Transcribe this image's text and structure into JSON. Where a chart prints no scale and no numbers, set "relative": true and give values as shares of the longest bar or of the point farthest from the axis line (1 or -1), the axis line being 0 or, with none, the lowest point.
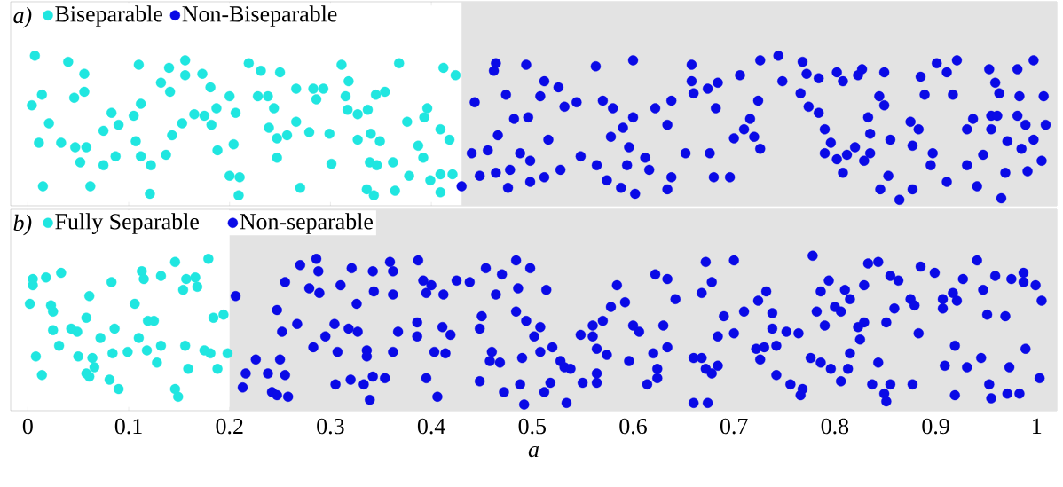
{
  "chart_data": [
    {
      "type": "scatter",
      "relative": true,
      "xlim": [
        -0.017,
        1.02
      ],
      "xticks": [
        0,
        0.1,
        0.2,
        0.3,
        0.4,
        0.5,
        0.6,
        0.7,
        0.8,
        0.9,
        1
      ],
      "tick_labels": false,
      "legend": "top left",
      "grid": false,
      "annotations": [
        "a)"
      ],
      "bands": [
        {
          "axis": "x",
          "from": 0.43,
          "to": 1.02,
          "color": "#e3e3e3"
        }
      ],
      "series": [
        {
          "name": "Biseparable",
          "color": "#20e6e0",
          "x": [
            0.007,
            0.04,
            0.056,
            0.014,
            0.004,
            0.046,
            0.056,
            0.021,
            0.011,
            0.033,
            0.047,
            0.058,
            0.015,
            0.062,
            0.052,
            0.075,
            0.087,
            0.083,
            0.09,
            0.075,
            0.105,
            0.107,
            0.112,
            0.11,
            0.112,
            0.122,
            0.121,
            0.137,
            0.143,
            0.14,
            0.132,
            0.141,
            0.156,
            0.156,
            0.173,
            0.181,
            0.153,
            0.165,
            0.175,
            0.182,
            0.187,
            0.188,
            0.204,
            0.2,
            0.206,
            0.2,
            0.21,
            0.209,
            0.219,
            0.231,
            0.25,
            0.228,
            0.238,
            0.244,
            0.239,
            0.247,
            0.257,
            0.247,
            0.266,
            0.266,
            0.279,
            0.283,
            0.293,
            0.286,
            0.299,
            0.27,
            0.301,
            0.311,
            0.318,
            0.315,
            0.317,
            0.327,
            0.337,
            0.345,
            0.354,
            0.327,
            0.34,
            0.349,
            0.339,
            0.346,
            0.362,
            0.336,
            0.343,
            0.364,
            0.368,
            0.376,
            0.378,
            0.387,
            0.392,
            0.396,
            0.393,
            0.399,
            0.409,
            0.412,
            0.409,
            0.418,
            0.409,
            0.424,
            0.421
          ],
          "values": [
            1.0,
            0.96,
            0.88,
            0.74,
            0.67,
            0.72,
            0.76,
            0.55,
            0.42,
            0.42,
            0.39,
            0.39,
            0.13,
            0.13,
            0.29,
            0.27,
            0.33,
            0.62,
            0.54,
            0.5,
            0.6,
            0.43,
            0.68,
            0.94,
            0.33,
            0.27,
            0.08,
            0.34,
            0.47,
            0.92,
            0.82,
            0.76,
            0.97,
            0.87,
            0.88,
            0.79,
            0.55,
            0.61,
            0.6,
            0.54,
            0.65,
            0.37,
            0.41,
            0.73,
            0.62,
            0.2,
            0.19,
            0.07,
            0.95,
            0.9,
            0.89,
            0.73,
            0.73,
            0.65,
            0.52,
            0.45,
            0.47,
            0.32,
            0.56,
            0.78,
            0.49,
            0.78,
            0.78,
            0.71,
            0.48,
            0.12,
            0.28,
            0.94,
            0.83,
            0.73,
            0.64,
            0.61,
            0.64,
            0.74,
            0.76,
            0.44,
            0.48,
            0.43,
            0.29,
            0.27,
            0.29,
            0.11,
            0.07,
            0.1,
            0.95,
            0.56,
            0.2,
            0.4,
            0.32,
            0.65,
            0.59,
            0.17,
            0.21,
            0.92,
            0.51,
            0.44,
            0.09,
            0.87,
            0.21
          ]
        },
        {
          "name": "Non-Biseparable",
          "color": "#0a0ae6",
          "x": [
            0.464,
            0.462,
            0.494,
            0.512,
            0.526,
            0.508,
            0.474,
            0.443,
            0.482,
            0.496,
            0.466,
            0.44,
            0.456,
            0.488,
            0.498,
            0.478,
            0.464,
            0.448,
            0.43,
            0.476,
            0.498,
            0.512,
            0.516,
            0.528,
            0.532,
            0.544,
            0.563,
            0.57,
            0.58,
            0.6,
            0.6,
            0.59,
            0.578,
            0.596,
            0.594,
            0.612,
            0.616,
            0.564,
            0.548,
            0.574,
            0.588,
            0.602,
            0.622,
            0.638,
            0.634,
            0.652,
            0.638,
            0.634,
            0.658,
            0.658,
            0.66,
            0.674,
            0.684,
            0.682,
            0.676,
            0.68,
            0.696,
            0.706,
            0.7,
            0.71,
            0.716,
            0.72,
            0.726,
            0.724,
            0.726,
            0.744,
            0.748,
            0.766,
            0.768,
            0.772,
            0.784,
            0.774,
            0.784,
            0.79,
            0.796,
            0.79,
            0.802,
            0.812,
            0.82,
            0.808,
            0.829,
            0.835,
            0.835,
            0.833,
            0.849,
            0.855,
            0.853,
            0.845,
            0.864,
            0.877,
            0.877,
            0.875,
            0.883,
            0.844,
            0.849,
            0.802,
            0.808,
            0.823,
            0.827,
            0.885,
            0.889,
            0.901,
            0.911,
            0.921,
            0.917,
            0.897,
            0.895,
            0.911,
            0.931,
            0.931,
            0.937,
            0.947,
            0.941,
            0.953,
            0.959,
            0.963,
            0.955,
            0.961,
            0.955,
            0.971,
            0.983,
            0.981,
            0.989,
            0.985,
            0.997,
            0.981,
            0.997,
            1.007,
            1.009,
            1.005,
            0.991,
            0.969,
            0.965
          ],
          "values": [
            0.95,
            0.9,
            0.94,
            0.83,
            0.79,
            0.73,
            0.74,
            0.69,
            0.58,
            0.59,
            0.47,
            0.35,
            0.37,
            0.35,
            0.3,
            0.24,
            0.22,
            0.2,
            0.13,
            0.12,
            0.16,
            0.19,
            0.44,
            0.24,
            0.66,
            0.69,
            0.93,
            0.7,
            0.65,
            0.97,
            0.59,
            0.52,
            0.46,
            0.39,
            0.27,
            0.32,
            0.24,
            0.27,
            0.33,
            0.17,
            0.12,
            0.08,
            0.65,
            0.7,
            0.54,
            0.35,
            0.19,
            0.11,
            0.94,
            0.83,
            0.75,
            0.78,
            0.82,
            0.65,
            0.35,
            0.19,
            0.19,
            0.87,
            0.45,
            0.51,
            0.58,
            0.46,
            0.38,
            0.7,
            0.97,
            1.0,
            0.83,
            0.75,
            0.96,
            0.88,
            0.85,
            0.66,
            0.62,
            0.51,
            0.42,
            0.35,
            0.31,
            0.34,
            0.39,
            0.22,
            0.3,
            0.35,
            0.48,
            0.59,
            0.89,
            0.44,
            0.2,
            0.11,
            0.04,
            0.11,
            0.4,
            0.56,
            0.51,
            0.73,
            0.67,
            0.89,
            0.83,
            0.87,
            0.91,
            0.86,
            0.74,
            0.95,
            0.89,
            0.97,
            0.74,
            0.35,
            0.27,
            0.16,
            0.27,
            0.51,
            0.58,
            0.34,
            0.13,
            0.91,
            0.82,
            0.75,
            0.6,
            0.6,
            0.51,
            0.43,
            0.73,
            0.6,
            0.54,
            0.38,
            0.44,
            0.91,
            0.97,
            0.73,
            0.54,
            0.3,
            0.23,
            0.22,
            0.05
          ]
        }
      ]
    },
    {
      "type": "scatter",
      "relative": true,
      "xlim": [
        -0.017,
        1.02
      ],
      "xticks": [
        0,
        0.1,
        0.2,
        0.3,
        0.4,
        0.5,
        0.6,
        0.7,
        0.8,
        0.9,
        1
      ],
      "tick_labels": "x",
      "xlabel": "a",
      "legend": "top left",
      "grid": false,
      "annotations": [
        "b)"
      ],
      "bands": [
        {
          "axis": "x",
          "from": 0.2,
          "to": 1.02,
          "color": "#e3e3e3"
        }
      ],
      "series": [
        {
          "name": "Fully Separable",
          "color": "#20e6e0",
          "x": [
            0.005,
            0.005,
            0.018,
            0.033,
            0.002,
            0.023,
            0.025,
            0.061,
            0.083,
            0.113,
            0.115,
            0.132,
            0.146,
            0.157,
            0.166,
            0.179,
            0.154,
            0.168,
            0.106,
            0.058,
            0.025,
            0.043,
            0.049,
            0.086,
            0.072,
            0.11,
            0.031,
            0.008,
            0.05,
            0.064,
            0.061,
            0.084,
            0.099,
            0.118,
            0.119,
            0.125,
            0.132,
            0.156,
            0.175,
            0.181,
            0.198,
            0.184,
            0.194,
            0.128,
            0.159,
            0.188,
            0.014,
            0.081,
            0.09,
            0.146,
            0.149,
            0.058,
            0.066
          ],
          "values": [
            0.81,
            0.85,
            0.86,
            0.89,
            0.69,
            0.68,
            0.64,
            0.74,
            0.83,
            0.9,
            0.85,
            0.87,
            0.96,
            0.85,
            0.86,
            0.98,
            0.78,
            0.8,
            0.69,
            0.6,
            0.52,
            0.53,
            0.51,
            0.53,
            0.47,
            0.47,
            0.42,
            0.35,
            0.35,
            0.34,
            0.22,
            0.37,
            0.38,
            0.39,
            0.58,
            0.58,
            0.42,
            0.42,
            0.39,
            0.37,
            0.37,
            0.6,
            0.62,
            0.31,
            0.27,
            0.27,
            0.23,
            0.2,
            0.14,
            0.14,
            0.09,
            0.24,
            0.28
          ]
        },
        {
          "name": "Non-separable",
          "color": "#0a0ae6",
          "x": [
            0.206,
            0.255,
            0.27,
            0.286,
            0.288,
            0.279,
            0.289,
            0.31,
            0.321,
            0.342,
            0.359,
            0.362,
            0.343,
            0.362,
            0.387,
            0.392,
            0.4,
            0.395,
            0.412,
            0.425,
            0.326,
            0.247,
            0.252,
            0.267,
            0.295,
            0.304,
            0.318,
            0.327,
            0.283,
            0.307,
            0.336,
            0.336,
            0.362,
            0.367,
            0.386,
            0.386,
            0.411,
            0.419,
            0.403,
            0.226,
            0.25,
            0.216,
            0.238,
            0.255,
            0.213,
            0.242,
            0.247,
            0.258,
            0.305,
            0.32,
            0.333,
            0.342,
            0.354,
            0.339,
            0.395,
            0.406,
            0.414,
            0.438,
            0.454,
            0.47,
            0.484,
            0.498,
            0.464,
            0.486,
            0.514,
            0.45,
            0.448,
            0.484,
            0.494,
            0.508,
            0.502,
            0.508,
            0.52,
            0.46,
            0.458,
            0.468,
            0.49,
            0.528,
            0.532,
            0.538,
            0.448,
            0.472,
            0.488,
            0.492,
            0.512,
            0.518,
            0.534,
            0.55,
            0.548,
            0.56,
            0.56,
            0.57,
            0.564,
            0.574,
            0.564,
            0.564,
            0.584,
            0.578,
            0.592,
            0.6,
            0.606,
            0.596,
            0.622,
            0.634,
            0.642,
            0.63,
            0.62,
            0.634,
            0.614,
            0.624,
            0.624,
            0.66,
            0.668,
            0.672,
            0.678,
            0.684,
            0.66,
            0.674,
            0.672,
            0.668,
            0.678,
            0.7,
            0.69,
            0.71,
            0.684,
            0.7,
            0.724,
            0.732,
            0.738,
            0.738,
            0.752,
            0.764,
            0.722,
            0.73,
            0.726,
            0.742,
            0.742,
            0.756,
            0.768,
            0.766,
            0.778,
            0.794,
            0.786,
            0.782,
            0.79,
            0.776,
            0.786,
            0.796,
            0.806,
            0.81,
            0.815,
            0.8,
            0.806,
            0.829,
            0.823,
            0.829,
            0.825,
            0.815,
            0.813,
            0.833,
            0.843,
            0.855,
            0.863,
            0.859,
            0.875,
            0.879,
            0.851,
            0.843,
            0.837,
            0.855,
            0.849,
            0.851,
            0.877,
            0.883,
            0.885,
            0.899,
            0.907,
            0.917,
            0.927,
            0.921,
            0.907,
            0.919,
            0.909,
            0.931,
            0.919,
            0.945,
            0.941,
            0.947,
            0.951,
            0.959,
            0.969,
            0.975,
            0.987,
            0.987,
            0.999,
            1.005,
            0.989,
            0.973,
            0.953,
            0.955,
            0.971,
            0.983,
            1.003
          ],
          "values": [
            0.74,
            0.83,
            0.94,
            0.98,
            0.9,
            0.79,
            0.76,
            0.81,
            0.92,
            0.9,
            0.96,
            0.9,
            0.77,
            0.75,
            0.97,
            0.84,
            0.81,
            0.76,
            0.75,
            0.84,
            0.69,
            0.65,
            0.51,
            0.56,
            0.48,
            0.56,
            0.53,
            0.51,
            0.41,
            0.38,
            0.39,
            0.35,
            0.38,
            0.51,
            0.57,
            0.48,
            0.54,
            0.49,
            0.38,
            0.33,
            0.33,
            0.24,
            0.24,
            0.23,
            0.15,
            0.12,
            0.1,
            0.09,
            0.17,
            0.2,
            0.17,
            0.22,
            0.21,
            0.07,
            0.21,
            0.09,
            0.37,
            0.83,
            0.92,
            0.88,
            0.97,
            0.92,
            0.75,
            0.79,
            0.78,
            0.61,
            0.53,
            0.64,
            0.58,
            0.54,
            0.48,
            0.38,
            0.41,
            0.38,
            0.32,
            0.31,
            0.34,
            0.32,
            0.28,
            0.27,
            0.19,
            0.12,
            0.17,
            0.04,
            0.12,
            0.18,
            0.05,
            0.18,
            0.49,
            0.48,
            0.55,
            0.58,
            0.4,
            0.36,
            0.24,
            0.18,
            0.81,
            0.67,
            0.7,
            0.55,
            0.51,
            0.32,
            0.88,
            0.85,
            0.72,
            0.55,
            0.37,
            0.41,
            0.17,
            0.27,
            0.21,
            0.34,
            0.34,
            0.27,
            0.24,
            0.29,
            0.05,
            0.05,
            0.96,
            0.76,
            0.83,
            0.97,
            0.61,
            0.64,
            0.48,
            0.5,
            0.71,
            0.77,
            0.63,
            0.53,
            0.51,
            0.5,
            0.4,
            0.41,
            0.33,
            0.42,
            0.23,
            0.17,
            0.14,
            0.1,
            1.0,
            0.84,
            0.77,
            0.64,
            0.55,
            0.34,
            0.31,
            0.27,
            0.19,
            0.78,
            0.72,
            0.67,
            0.64,
            0.81,
            0.54,
            0.57,
            0.46,
            0.37,
            0.27,
            0.95,
            0.96,
            0.87,
            0.84,
            0.66,
            0.72,
            0.68,
            0.57,
            0.31,
            0.17,
            0.17,
            0.11,
            0.06,
            0.17,
            0.5,
            0.93,
            0.89,
            0.72,
            0.76,
            0.85,
            0.71,
            0.66,
            0.42,
            0.29,
            0.28,
            0.1,
            0.34,
            0.97,
            0.78,
            0.62,
            0.87,
            0.61,
            0.85,
            0.89,
            0.83,
            0.81,
            0.71,
            0.4,
            0.28,
            0.17,
            0.08,
            0.11,
            0.11,
            0.21
          ]
        }
      ]
    }
  ]
}
